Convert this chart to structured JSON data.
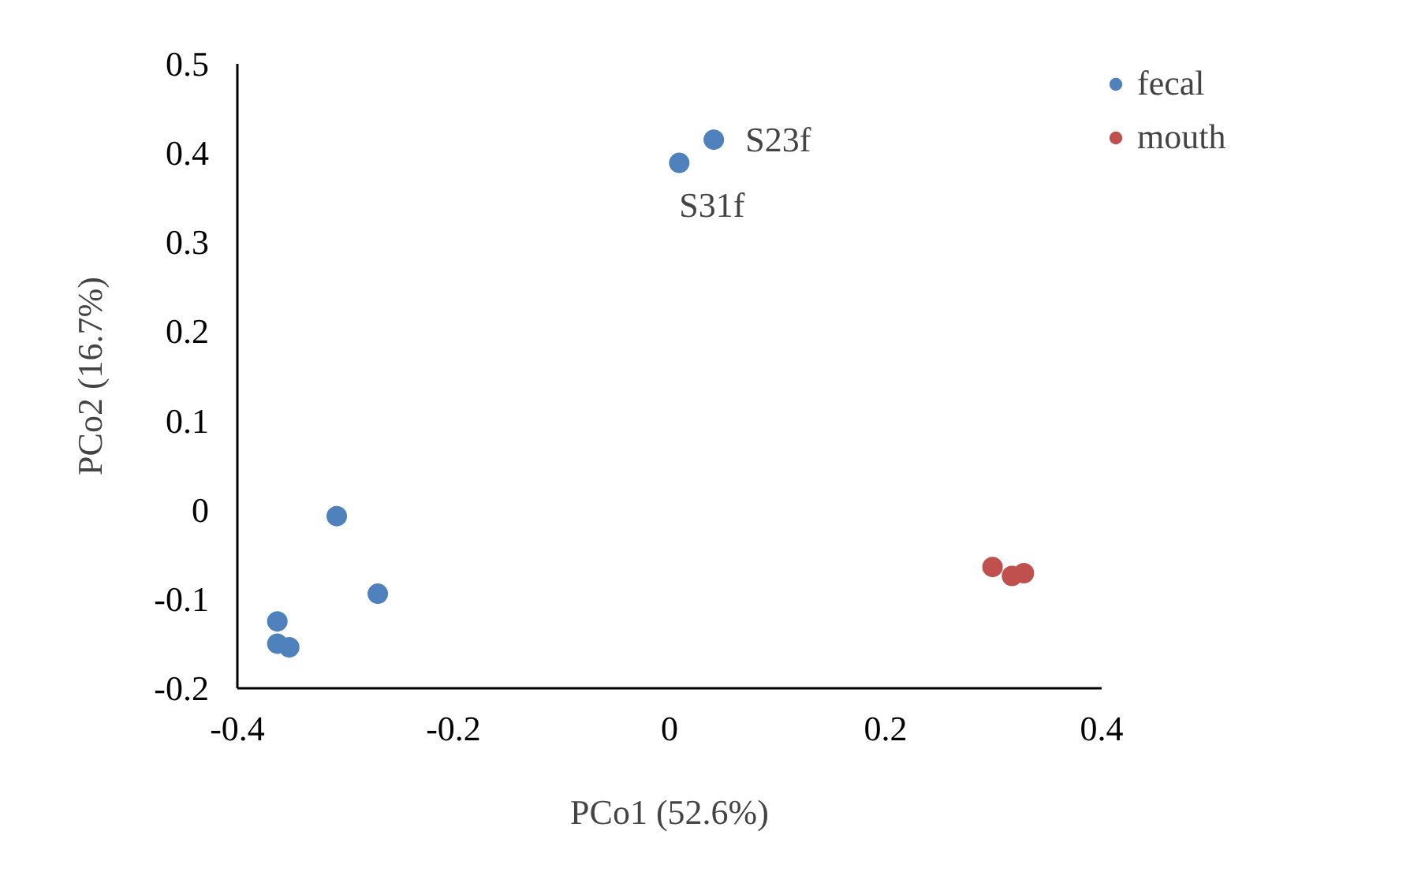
{
  "chart_data": {
    "type": "scatter",
    "xlabel": "PCo1 (52.6%)",
    "ylabel": "PCo2 (16.7%)",
    "series": [
      {
        "name": "fecal",
        "color": "#4f81bd",
        "x": [
          0.041,
          0.009,
          -0.308,
          -0.27,
          -0.363,
          -0.363,
          -0.352
        ],
        "values": [
          0.415,
          0.389,
          -0.007,
          -0.094,
          -0.125,
          -0.15,
          -0.154
        ]
      },
      {
        "name": "mouth",
        "color": "#c0504d",
        "x": [
          0.299,
          0.317,
          0.328
        ],
        "values": [
          -0.064,
          -0.074,
          -0.071
        ]
      }
    ],
    "annotations": [
      {
        "text": "S23f",
        "x": 0.041,
        "y": 0.415
      },
      {
        "text": "S31f",
        "x": 0.009,
        "y": 0.389
      }
    ],
    "xlim": [
      -0.4,
      0.4
    ],
    "xticks": [
      -0.4,
      -0.2,
      0,
      0.2,
      0.4
    ],
    "ylim": [
      -0.2,
      0.5
    ],
    "yticks": [
      -0.2,
      -0.1,
      0,
      0.1,
      0.2,
      0.3,
      0.4,
      0.5
    ],
    "marker": "circle",
    "grid": false,
    "legend": "top right"
  }
}
